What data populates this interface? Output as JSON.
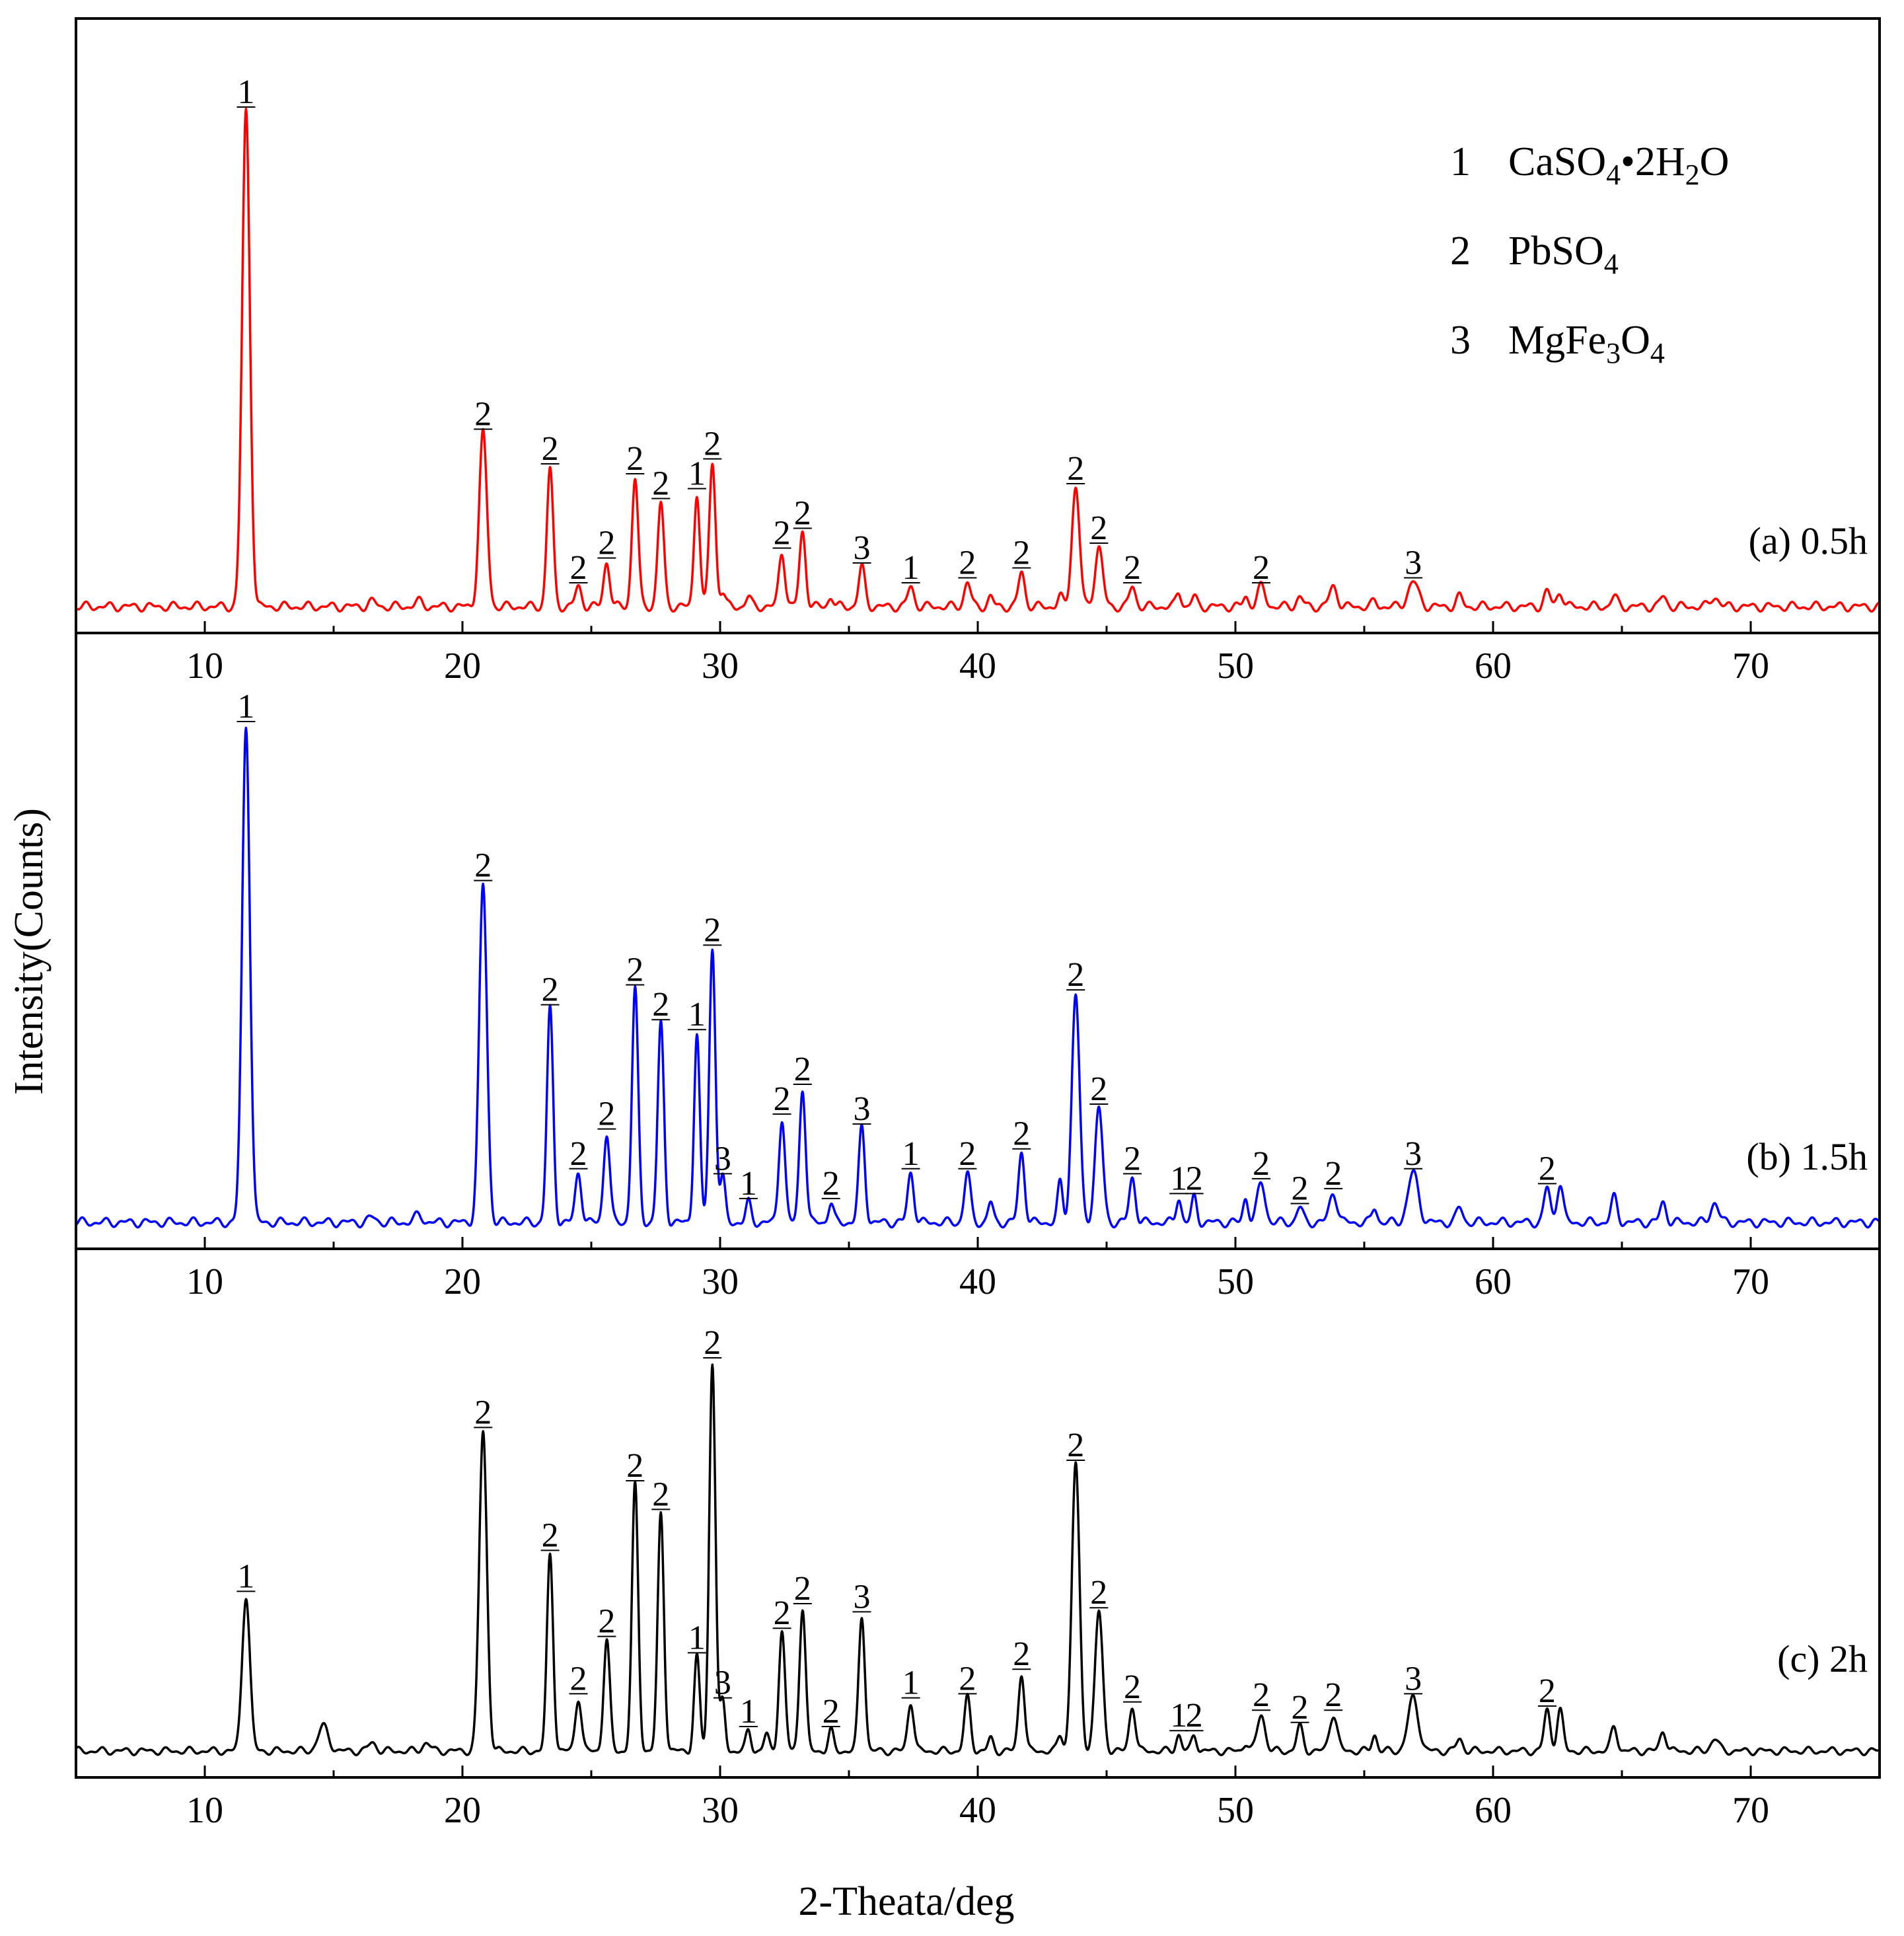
{
  "chart_data": {
    "type": "line",
    "xlabel": "2-Theata/deg",
    "ylabel": "Intensity(Counts)",
    "xlim": [
      5,
      75
    ],
    "x_ticks": [
      "10",
      "20",
      "30",
      "40",
      "50",
      "60",
      "70"
    ],
    "legend": {
      "placement": "top-right",
      "entries": [
        {
          "num": "1",
          "name": "CaSO4•2H2O",
          "parts": [
            [
              "CaSO",
              ""
            ],
            [
              "4",
              "sub"
            ],
            [
              "•2H",
              ""
            ],
            [
              "2",
              "sub"
            ],
            [
              "O",
              ""
            ]
          ]
        },
        {
          "num": "2",
          "name": "PbSO4",
          "parts": [
            [
              "PbSO",
              ""
            ],
            [
              "4",
              "sub"
            ]
          ]
        },
        {
          "num": "3",
          "name": "MgFe3O4",
          "parts": [
            [
              "MgFe",
              ""
            ],
            [
              "3",
              "sub"
            ],
            [
              "O",
              ""
            ],
            [
              "4",
              "sub"
            ]
          ]
        }
      ]
    },
    "panels": [
      {
        "label": "(a) 0.5h",
        "color": "#ff0000",
        "ylim": [
          0,
          100
        ],
        "peaks": [
          [
            11.6,
            100,
            0.15,
            "1"
          ],
          [
            16.5,
            1,
            0.15,
            ""
          ],
          [
            18.3,
            1,
            0.15,
            ""
          ],
          [
            20.8,
            35,
            0.15,
            "2"
          ],
          [
            23.4,
            28,
            0.12,
            "2"
          ],
          [
            24.5,
            4,
            0.12,
            "2"
          ],
          [
            25.6,
            9,
            0.12,
            "2"
          ],
          [
            26.7,
            26,
            0.12,
            "2"
          ],
          [
            27.7,
            21,
            0.12,
            "2"
          ],
          [
            29.1,
            23,
            0.11,
            "1"
          ],
          [
            29.7,
            29,
            0.12,
            "2"
          ],
          [
            30.1,
            3,
            0.1,
            ""
          ],
          [
            31.1,
            2,
            0.1,
            ""
          ],
          [
            32.4,
            11,
            0.12,
            "2"
          ],
          [
            33.2,
            15,
            0.12,
            "2"
          ],
          [
            34.3,
            2,
            0.1,
            ""
          ],
          [
            35.5,
            8,
            0.12,
            "3"
          ],
          [
            37.4,
            4,
            0.12,
            "1"
          ],
          [
            39.6,
            5,
            0.12,
            "2"
          ],
          [
            40.5,
            2,
            0.1,
            ""
          ],
          [
            41.7,
            7,
            0.12,
            "2"
          ],
          [
            43.2,
            2,
            0.1,
            ""
          ],
          [
            43.8,
            24,
            0.15,
            "2"
          ],
          [
            44.7,
            12,
            0.15,
            "2"
          ],
          [
            46.0,
            4,
            0.12,
            "2"
          ],
          [
            47.8,
            3,
            0.1,
            ""
          ],
          [
            48.4,
            2,
            0.1,
            ""
          ],
          [
            50.4,
            2,
            0.1,
            ""
          ],
          [
            51.0,
            4,
            0.15,
            "2"
          ],
          [
            52.5,
            2,
            0.12,
            ""
          ],
          [
            53.8,
            4,
            0.15,
            ""
          ],
          [
            55.4,
            1,
            0.1,
            ""
          ],
          [
            56.9,
            5,
            0.2,
            "3"
          ],
          [
            58.7,
            2,
            0.12,
            ""
          ],
          [
            62.1,
            3,
            0.12,
            ""
          ],
          [
            62.6,
            3,
            0.12,
            ""
          ],
          [
            64.7,
            2,
            0.12,
            ""
          ],
          [
            66.6,
            2,
            0.12,
            ""
          ],
          [
            68.6,
            2,
            0.15,
            ""
          ]
        ]
      },
      {
        "label": "(b) 1.5h",
        "color": "#0000ff",
        "ylim": [
          0,
          100
        ],
        "peaks": [
          [
            11.6,
            100,
            0.15,
            "1"
          ],
          [
            16.5,
            1,
            0.15,
            ""
          ],
          [
            18.3,
            1.5,
            0.15,
            ""
          ],
          [
            20.8,
            68,
            0.15,
            "2"
          ],
          [
            23.4,
            43,
            0.12,
            "2"
          ],
          [
            24.5,
            10,
            0.12,
            "2"
          ],
          [
            25.6,
            18,
            0.12,
            "2"
          ],
          [
            26.7,
            47,
            0.12,
            "2"
          ],
          [
            27.7,
            40,
            0.12,
            "2"
          ],
          [
            29.1,
            38,
            0.11,
            "1"
          ],
          [
            29.7,
            55,
            0.12,
            "2"
          ],
          [
            30.1,
            9,
            0.1,
            "3"
          ],
          [
            31.1,
            4,
            0.1,
            "1"
          ],
          [
            32.4,
            21,
            0.12,
            "2"
          ],
          [
            33.2,
            27,
            0.12,
            "2"
          ],
          [
            34.3,
            4,
            0.1,
            "2"
          ],
          [
            35.5,
            19,
            0.12,
            "3"
          ],
          [
            37.4,
            10,
            0.12,
            "1"
          ],
          [
            39.6,
            10,
            0.12,
            "2"
          ],
          [
            40.5,
            4,
            0.1,
            ""
          ],
          [
            41.7,
            14,
            0.12,
            "2"
          ],
          [
            43.2,
            8,
            0.1,
            ""
          ],
          [
            43.8,
            46,
            0.15,
            "2"
          ],
          [
            44.7,
            23,
            0.15,
            "2"
          ],
          [
            46.0,
            9,
            0.12,
            "2"
          ],
          [
            47.8,
            5,
            0.1,
            "1"
          ],
          [
            48.4,
            5,
            0.1,
            "2"
          ],
          [
            50.4,
            5,
            0.1,
            ""
          ],
          [
            51.0,
            8,
            0.15,
            "2"
          ],
          [
            52.5,
            3,
            0.12,
            "2"
          ],
          [
            53.8,
            6,
            0.15,
            "2"
          ],
          [
            55.4,
            3,
            0.1,
            ""
          ],
          [
            56.9,
            10,
            0.2,
            "3"
          ],
          [
            58.7,
            3,
            0.12,
            ""
          ],
          [
            62.1,
            7,
            0.12,
            "2"
          ],
          [
            62.6,
            8,
            0.12,
            ""
          ],
          [
            64.7,
            5,
            0.12,
            ""
          ],
          [
            66.6,
            4,
            0.12,
            ""
          ],
          [
            68.6,
            4,
            0.15,
            ""
          ]
        ]
      },
      {
        "label": "(c) 2h",
        "color": "#000000",
        "ylim": [
          0,
          100
        ],
        "peaks": [
          [
            11.6,
            38,
            0.15,
            "1"
          ],
          [
            14.6,
            6,
            0.2,
            ""
          ],
          [
            16.5,
            2,
            0.15,
            ""
          ],
          [
            18.6,
            2,
            0.15,
            ""
          ],
          [
            20.8,
            78,
            0.15,
            "2"
          ],
          [
            23.4,
            48,
            0.12,
            "2"
          ],
          [
            24.5,
            13,
            0.12,
            "2"
          ],
          [
            25.6,
            27,
            0.12,
            "2"
          ],
          [
            26.7,
            65,
            0.12,
            "2"
          ],
          [
            27.7,
            58,
            0.12,
            "2"
          ],
          [
            29.1,
            23,
            0.11,
            "1"
          ],
          [
            29.7,
            95,
            0.12,
            "2"
          ],
          [
            30.1,
            12,
            0.1,
            "3"
          ],
          [
            31.1,
            5,
            0.1,
            "1"
          ],
          [
            31.8,
            4,
            0.1,
            ""
          ],
          [
            32.4,
            29,
            0.12,
            "2"
          ],
          [
            33.2,
            35,
            0.12,
            "2"
          ],
          [
            34.3,
            5,
            0.1,
            "2"
          ],
          [
            35.5,
            33,
            0.12,
            "3"
          ],
          [
            37.4,
            12,
            0.12,
            "1"
          ],
          [
            39.6,
            13,
            0.12,
            "2"
          ],
          [
            40.5,
            3,
            0.1,
            ""
          ],
          [
            41.7,
            19,
            0.12,
            "2"
          ],
          [
            43.2,
            4,
            0.1,
            ""
          ],
          [
            43.8,
            70,
            0.15,
            "2"
          ],
          [
            44.7,
            34,
            0.15,
            "2"
          ],
          [
            46.0,
            11,
            0.12,
            "2"
          ],
          [
            47.8,
            4,
            0.1,
            "1"
          ],
          [
            48.4,
            4,
            0.1,
            "2"
          ],
          [
            50.4,
            2,
            0.1,
            ""
          ],
          [
            51.0,
            9,
            0.15,
            "2"
          ],
          [
            52.5,
            6,
            0.12,
            "2"
          ],
          [
            53.8,
            9,
            0.15,
            "2"
          ],
          [
            55.4,
            4,
            0.1,
            ""
          ],
          [
            56.9,
            13,
            0.2,
            "3"
          ],
          [
            58.7,
            3,
            0.12,
            ""
          ],
          [
            62.1,
            10,
            0.12,
            "2"
          ],
          [
            62.6,
            10,
            0.12,
            ""
          ],
          [
            64.7,
            6,
            0.12,
            ""
          ],
          [
            66.6,
            5,
            0.12,
            ""
          ],
          [
            68.6,
            3,
            0.15,
            ""
          ]
        ]
      }
    ]
  }
}
